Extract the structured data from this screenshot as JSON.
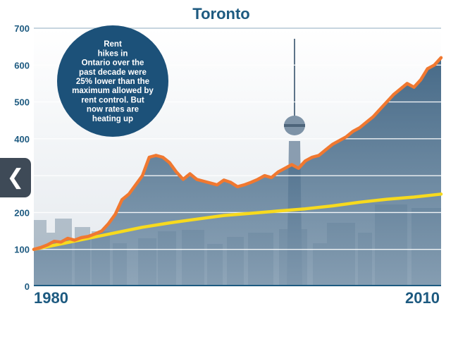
{
  "chart_data": {
    "type": "line",
    "title": "Toronto",
    "xlabel": "",
    "ylabel": "",
    "xlim": [
      1980,
      2010
    ],
    "ylim": [
      0,
      700
    ],
    "yticks": [
      0,
      100,
      200,
      300,
      400,
      500,
      600,
      700
    ],
    "xtick_labels": [
      {
        "x": 1980,
        "label": "1980"
      },
      {
        "x": 2010,
        "label": "2010"
      }
    ],
    "grid": true,
    "series": [
      {
        "color": "#f07830",
        "filled": true,
        "x": [
          1980,
          1980.5,
          1981,
          1981.5,
          1982,
          1982.5,
          1983,
          1983.5,
          1984,
          1984.5,
          1985,
          1985.5,
          1986,
          1986.5,
          1987,
          1987.5,
          1988,
          1988.5,
          1989,
          1989.5,
          1990,
          1990.5,
          1991,
          1991.5,
          1992,
          1992.5,
          1993,
          1993.5,
          1994,
          1994.5,
          1995,
          1995.5,
          1996,
          1996.5,
          1997,
          1997.5,
          1998,
          1998.5,
          1999,
          1999.5,
          2000,
          2000.5,
          2001,
          2001.5,
          2002,
          2002.5,
          2003,
          2003.5,
          2004,
          2004.5,
          2005,
          2005.5,
          2006,
          2006.5,
          2007,
          2007.5,
          2008,
          2008.5,
          2009,
          2009.5,
          2010
        ],
        "values": [
          100,
          105,
          112,
          122,
          120,
          130,
          125,
          132,
          135,
          142,
          150,
          170,
          195,
          235,
          250,
          275,
          300,
          350,
          355,
          350,
          335,
          310,
          290,
          305,
          290,
          285,
          280,
          275,
          288,
          282,
          270,
          275,
          282,
          290,
          300,
          295,
          310,
          320,
          330,
          320,
          340,
          350,
          355,
          370,
          385,
          395,
          405,
          420,
          430,
          445,
          460,
          480,
          500,
          520,
          535,
          550,
          540,
          560,
          590,
          600,
          620
        ]
      },
      {
        "color": "#f7da1e",
        "filled": false,
        "x": [
          1980,
          1982,
          1984,
          1986,
          1988,
          1990,
          1992,
          1994,
          1996,
          1998,
          2000,
          2002,
          2004,
          2006,
          2008,
          2010
        ],
        "values": [
          100,
          115,
          130,
          145,
          160,
          172,
          182,
          192,
          198,
          204,
          210,
          218,
          228,
          236,
          242,
          250
        ]
      }
    ],
    "annotations": [
      {
        "text": [
          "Rent",
          "hikes in",
          "Ontario over the",
          "past decade were",
          "25% lower than the",
          "maximum allowed by",
          "rent control. But",
          "now rates are",
          "heating up"
        ]
      }
    ],
    "colors": {
      "primary": "#1d5a80",
      "area": "#365c7c",
      "rent": "#f07830",
      "control": "#f7da1e"
    }
  },
  "nav": {
    "prev_icon": "❮"
  }
}
